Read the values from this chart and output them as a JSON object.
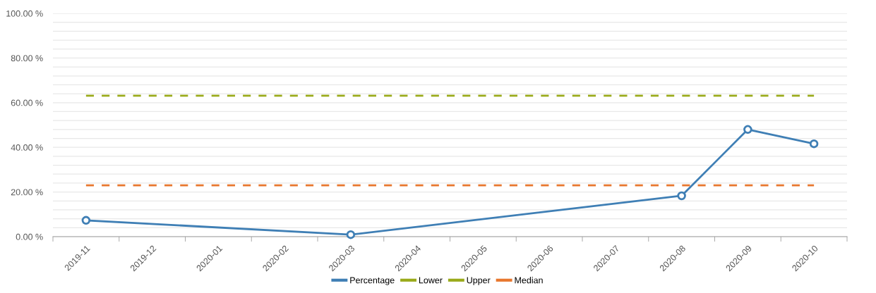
{
  "chart_data": {
    "type": "line",
    "categories": [
      "2019-11",
      "2019-12",
      "2020-01",
      "2020-02",
      "2020-03",
      "2020-04",
      "2020-05",
      "2020-06",
      "2020-07",
      "2020-08",
      "2020-09",
      "2020-10"
    ],
    "series": [
      {
        "name": "Percentage",
        "color": "#3f7fb5",
        "marker": "circle",
        "line_style": "solid",
        "values": [
          7.3,
          null,
          null,
          null,
          0.9,
          null,
          null,
          null,
          null,
          18.3,
          48.0,
          41.6
        ]
      },
      {
        "name": "Lower",
        "color": "#9aaa1a",
        "marker": "none",
        "line_style": "dashed",
        "values": [
          null,
          null,
          null,
          null,
          null,
          null,
          null,
          null,
          null,
          null,
          null,
          null
        ]
      },
      {
        "name": "Upper",
        "color": "#9aaa1a",
        "marker": "none",
        "line_style": "dashed",
        "values": [
          63.1,
          63.1,
          63.1,
          63.1,
          63.1,
          63.1,
          63.1,
          63.1,
          63.1,
          63.1,
          63.1,
          63.1
        ]
      },
      {
        "name": "Median",
        "color": "#e8772e",
        "marker": "none",
        "line_style": "dashed",
        "values": [
          23.0,
          23.0,
          23.0,
          23.0,
          23.0,
          23.0,
          23.0,
          23.0,
          23.0,
          23.0,
          23.0,
          23.0
        ]
      }
    ],
    "ylim": [
      0,
      100
    ],
    "yticks": [
      {
        "value": 0,
        "label": "0.00 %"
      },
      {
        "value": 4,
        "label": null
      },
      {
        "value": 8,
        "label": null
      },
      {
        "value": 12,
        "label": null
      },
      {
        "value": 16,
        "label": null
      },
      {
        "value": 20,
        "label": "20.00 %"
      },
      {
        "value": 24,
        "label": null
      },
      {
        "value": 28,
        "label": null
      },
      {
        "value": 32,
        "label": null
      },
      {
        "value": 36,
        "label": null
      },
      {
        "value": 40,
        "label": "40.00 %"
      },
      {
        "value": 44,
        "label": null
      },
      {
        "value": 48,
        "label": null
      },
      {
        "value": 52,
        "label": null
      },
      {
        "value": 56,
        "label": null
      },
      {
        "value": 60,
        "label": "60.00 %"
      },
      {
        "value": 64,
        "label": null
      },
      {
        "value": 68,
        "label": null
      },
      {
        "value": 72,
        "label": null
      },
      {
        "value": 76,
        "label": null
      },
      {
        "value": 80,
        "label": "80.00 %"
      },
      {
        "value": 84,
        "label": null
      },
      {
        "value": 88,
        "label": null
      },
      {
        "value": 92,
        "label": null
      },
      {
        "value": 96,
        "label": null
      },
      {
        "value": 100,
        "label": "100.00 %"
      }
    ],
    "grid": "y",
    "legend": "bottom"
  }
}
